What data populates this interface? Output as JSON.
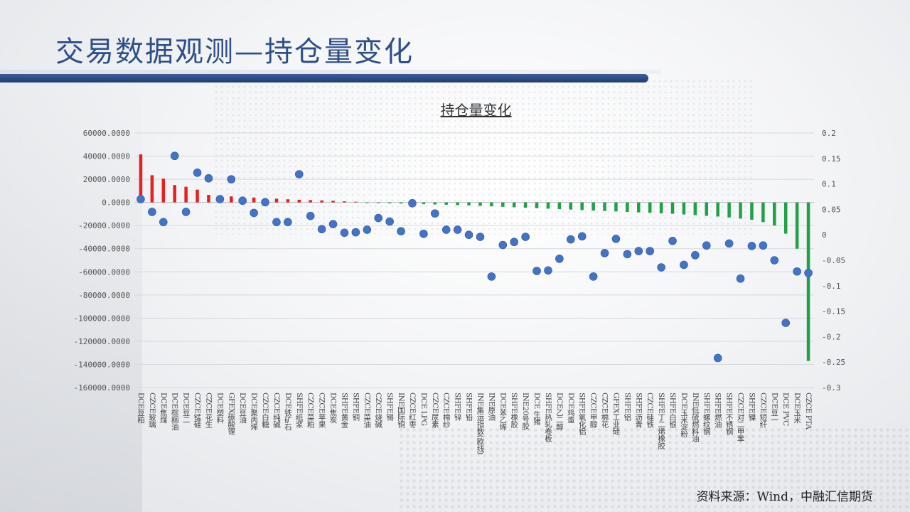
{
  "slide": {
    "title": "交易数据观测—持仓量变化",
    "source": "资料来源：Wind，中融汇信期货"
  },
  "colors": {
    "title": "#2f4f87",
    "band": "#1f3b73",
    "positive_bar": "#e8201f",
    "negative_bar": "#1fa246",
    "dot": "#4472c4"
  },
  "chart_data": {
    "type": "bar",
    "title": "持仓量变化",
    "left_axis": {
      "ylim": [
        -160000,
        60000
      ],
      "ticks": [
        "60000.0000",
        "40000.0000",
        "20000.0000",
        "0.0000",
        "-20000.0000",
        "-40000.0000",
        "-60000.0000",
        "-80000.0000",
        "-100000.0000",
        "-120000.0000",
        "-140000.0000",
        "-160000.0000"
      ]
    },
    "right_axis": {
      "ylim": [
        -0.3,
        0.2
      ],
      "ticks": [
        "0.2",
        "0.15",
        "0.1",
        "0.05",
        "0",
        "-0.05",
        "-0.1",
        "-0.15",
        "-0.2",
        "-0.25",
        "-0.3"
      ]
    },
    "categories": [
      "DCE豆粕",
      "CZCE玻璃",
      "DCE焦煤",
      "DCE棕榈油",
      "DCE豆二",
      "CZCE锰硅",
      "CZCE花生",
      "DCE塑料",
      "GFEX碳酸锂",
      "DCE豆油",
      "DCE聚丙烯",
      "CZCE白糖",
      "CZCE纯碱",
      "DCE铁矿石",
      "SHFE纸浆",
      "CZCE菜粕",
      "CZCE苹果",
      "DCE焦炭",
      "SHFE黄金",
      "SHFE铜",
      "CZCE菜油",
      "CZCE烧碱",
      "SHFE锡",
      "INE国际铜",
      "CZCE红枣",
      "DCE LPG",
      "CZCE尿素",
      "CZCE棉纱",
      "SHFE锌",
      "SHFE铅",
      "INE集运指数(欧线)",
      "INE原油",
      "DCE苯乙烯",
      "SHFE橡胶",
      "INE20号胶",
      "DCE 生猪",
      "SHFE热轧卷板",
      "DCE乙二醇",
      "DCE鸡蛋",
      "SHFE氧化铝",
      "CZCE甲醇",
      "CZCE棉花",
      "GFEX工业硅",
      "SHFE铝",
      "SHFE沥青",
      "CZCE硅铁",
      "SHFE丁二烯橡胶",
      "SHFE白银",
      "DCE玉米淀粉",
      "INE低硫燃料油",
      "SHFE螺纹钢",
      "SHFE燃油",
      "SHFE不锈钢",
      "CZCE对二甲苯",
      "SHFE镍",
      "CZCE短纤",
      "DCE豆一",
      "DCE PVC",
      "DCE玉米",
      "CZCE PTA"
    ],
    "series": [
      {
        "axis": "left",
        "values": [
          41500,
          23500,
          20500,
          15000,
          13500,
          11000,
          6500,
          5800,
          5200,
          4600,
          4200,
          3700,
          3200,
          2700,
          2300,
          2000,
          1700,
          1400,
          1000,
          600,
          -400,
          -600,
          -800,
          -1000,
          -1200,
          -1500,
          -1800,
          -2000,
          -2300,
          -2600,
          -3000,
          -3400,
          -3800,
          -4200,
          -4600,
          -5000,
          -5400,
          -5800,
          -6200,
          -6600,
          -7000,
          -7400,
          -7800,
          -8200,
          -8600,
          -9000,
          -9400,
          -9800,
          -10400,
          -11000,
          -11600,
          -12200,
          -13000,
          -14000,
          -15000,
          -17000,
          -20000,
          -27000,
          -40000,
          -137000
        ]
      },
      {
        "axis": "right",
        "values": [
          0.07,
          0.045,
          0.025,
          0.155,
          0.045,
          0.122,
          0.111,
          0.07,
          0.109,
          0.067,
          0.043,
          0.064,
          0.025,
          0.025,
          0.119,
          0.037,
          0.011,
          0.021,
          0.004,
          0.005,
          0.01,
          0.033,
          0.026,
          0.007,
          0.062,
          0.002,
          0.042,
          0.01,
          0.01,
          0.0,
          -0.004,
          -0.082,
          -0.02,
          -0.014,
          -0.004,
          -0.071,
          -0.07,
          -0.047,
          -0.009,
          -0.003,
          -0.082,
          -0.036,
          -0.008,
          -0.038,
          -0.032,
          -0.032,
          -0.064,
          -0.012,
          -0.059,
          -0.04,
          -0.021,
          -0.242,
          -0.017,
          -0.086,
          -0.022,
          -0.021,
          -0.05,
          -0.173,
          -0.072,
          -0.075
        ]
      }
    ]
  }
}
